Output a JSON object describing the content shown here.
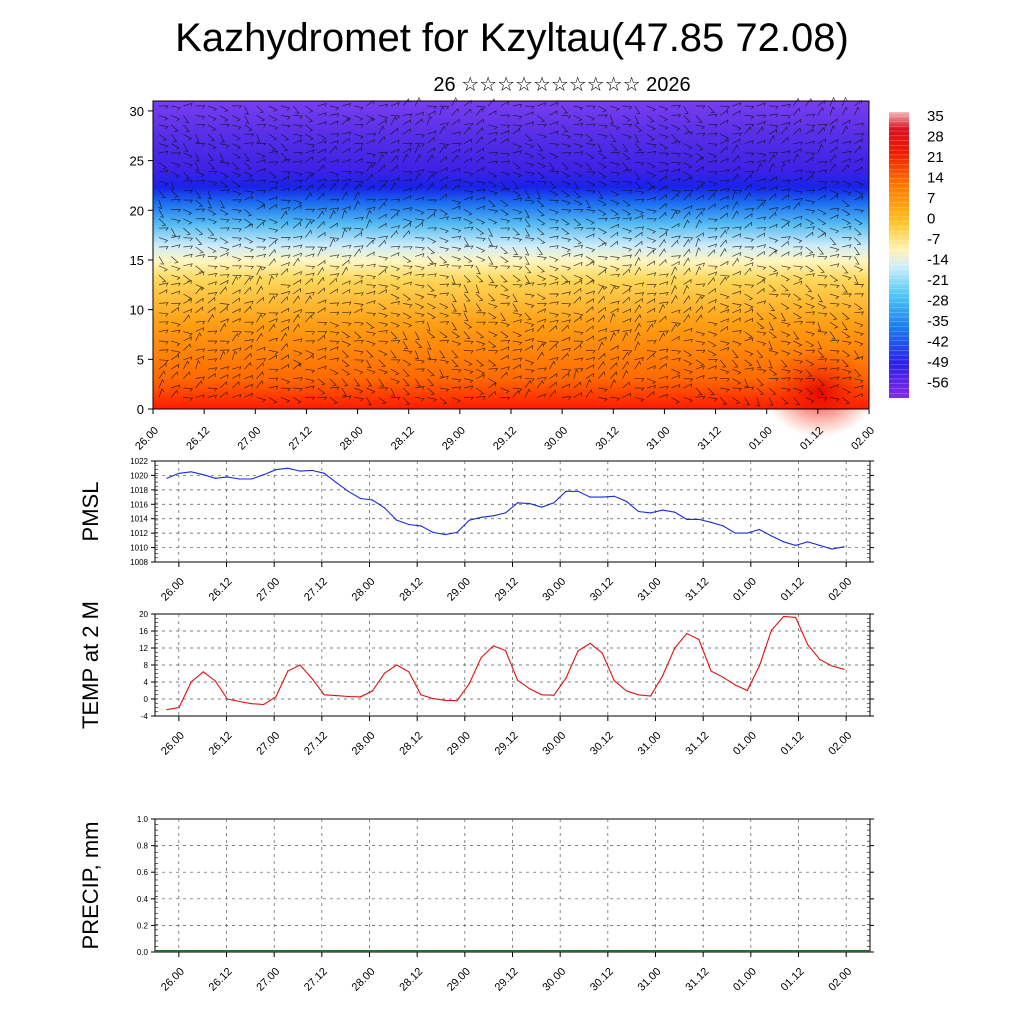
{
  "title": "Kazhydromet for Kzyltau(47.85 72.08)",
  "subtitle": "26 ☆☆☆☆☆☆☆☆☆☆ 2026",
  "time_labels": [
    "26.00",
    "26.12",
    "27.00",
    "27.12",
    "28.00",
    "28.12",
    "29.00",
    "29.12",
    "30.00",
    "30.12",
    "31.00",
    "31.12",
    "01.00",
    "01.12",
    "02.00"
  ],
  "colors": {
    "pmsl_line": "#1a2bd9",
    "temp_line": "#e01010",
    "precip_zero": "#1e6e2e"
  },
  "chart_data": [
    {
      "type": "heatmap",
      "name": "temperature-wind cross-section",
      "y_ticks": [
        0,
        5,
        10,
        15,
        20,
        25,
        30
      ],
      "ylim": [
        0,
        31
      ],
      "colorbar_labels": [
        "35",
        "28",
        "21",
        "14",
        "7",
        "0",
        "-7",
        "-14",
        "-21",
        "-28",
        "-35",
        "-42",
        "-49",
        "-56"
      ],
      "value_range": [
        -60,
        38
      ]
    },
    {
      "type": "line",
      "name": "PMSL",
      "ylabel": "PMSL",
      "ylim": [
        1008,
        1022
      ],
      "y_ticks": [
        1008,
        1010,
        1012,
        1014,
        1016,
        1018,
        1020,
        1022
      ],
      "values": [
        1019.6,
        1020.3,
        1020.5,
        1020.1,
        1019.6,
        1019.8,
        1019.5,
        1019.5,
        1020.1,
        1020.8,
        1021.0,
        1020.6,
        1020.7,
        1020.3,
        1019.0,
        1017.8,
        1016.8,
        1016.6,
        1015.5,
        1013.8,
        1013.2,
        1013.0,
        1012.1,
        1011.8,
        1012.1,
        1013.8,
        1014.2,
        1014.4,
        1014.8,
        1016.2,
        1016.1,
        1015.6,
        1016.2,
        1017.8,
        1017.8,
        1017.0,
        1017.0,
        1017.1,
        1016.4,
        1015.0,
        1014.8,
        1015.2,
        1014.9,
        1013.9,
        1013.9,
        1013.5,
        1013.0,
        1012.0,
        1012.0,
        1012.5,
        1011.6,
        1010.8,
        1010.3,
        1010.8,
        1010.3,
        1009.8,
        1010.1
      ]
    },
    {
      "type": "line",
      "name": "TEMP at 2 M",
      "ylabel": "TEMP at 2 M",
      "ylim": [
        -4,
        20
      ],
      "y_ticks": [
        -4,
        0,
        4,
        8,
        12,
        16,
        20
      ],
      "values": [
        -2.5,
        -2.0,
        4.0,
        6.4,
        4.2,
        0.0,
        -0.6,
        -1.1,
        -1.3,
        0.5,
        6.6,
        8.0,
        4.8,
        1.0,
        0.8,
        0.6,
        0.5,
        1.9,
        6.1,
        8.0,
        6.4,
        1.0,
        0.1,
        -0.3,
        -0.4,
        3.6,
        9.8,
        12.5,
        11.4,
        4.4,
        2.4,
        1.0,
        0.9,
        4.9,
        11.3,
        13.1,
        10.8,
        4.3,
        1.9,
        1.0,
        0.7,
        5.5,
        12.0,
        15.4,
        14.0,
        6.6,
        5.1,
        3.3,
        2.0,
        7.8,
        16.2,
        19.4,
        19.2,
        12.8,
        9.3,
        7.8,
        7.0
      ]
    },
    {
      "type": "bar",
      "name": "PRECIP",
      "ylabel": "PRECIP, mm",
      "ylim": [
        0,
        1.0
      ],
      "y_ticks": [
        "0.0",
        "0.2",
        "0.4",
        "0.6",
        "0.8",
        "1.0"
      ],
      "values": []
    }
  ]
}
